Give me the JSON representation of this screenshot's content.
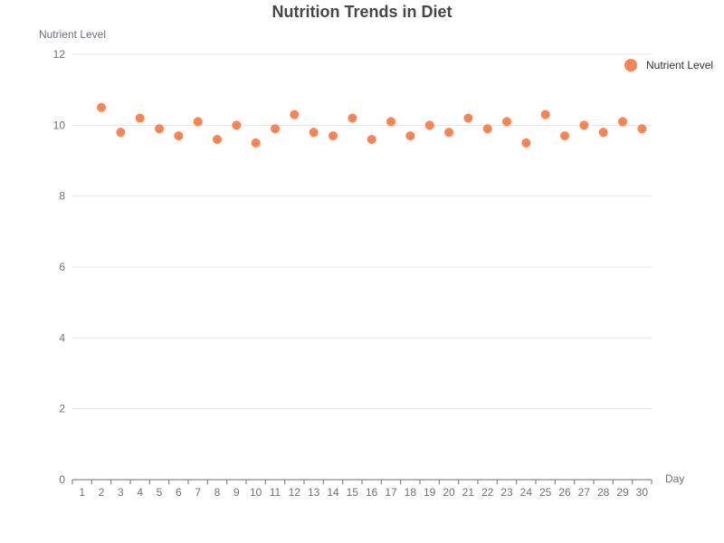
{
  "chart_data": {
    "type": "scatter",
    "title": "Nutrition Trends in Diet",
    "xlabel": "Day",
    "ylabel": "Nutrient Level",
    "x": [
      1,
      2,
      3,
      4,
      5,
      6,
      7,
      8,
      9,
      10,
      11,
      12,
      13,
      14,
      15,
      16,
      17,
      18,
      19,
      20,
      21,
      22,
      23,
      24,
      25,
      26,
      27,
      28,
      29,
      30
    ],
    "categories": [
      "1",
      "2",
      "3",
      "4",
      "5",
      "6",
      "7",
      "8",
      "9",
      "10",
      "11",
      "12",
      "13",
      "14",
      "15",
      "16",
      "17",
      "18",
      "19",
      "20",
      "21",
      "22",
      "23",
      "24",
      "25",
      "26",
      "27",
      "28",
      "29",
      "30"
    ],
    "series": [
      {
        "name": "Nutrient Level",
        "x": [
          2,
          3,
          4,
          5,
          6,
          7,
          8,
          9,
          10,
          11,
          12,
          13,
          14,
          15,
          16,
          17,
          18,
          19,
          20,
          21,
          22,
          23,
          24,
          25,
          26,
          27,
          28,
          29,
          30
        ],
        "values": [
          10.5,
          9.8,
          10.2,
          9.9,
          9.7,
          10.1,
          9.6,
          10.0,
          9.5,
          9.9,
          10.3,
          9.8,
          9.7,
          10.2,
          9.6,
          10.1,
          9.7,
          10.0,
          9.8,
          10.2,
          9.9,
          10.1,
          9.5,
          10.3,
          9.7,
          10.0,
          9.8,
          10.1,
          9.9
        ]
      }
    ],
    "ylim": [
      0,
      12
    ],
    "yticks": [
      "0",
      "2",
      "4",
      "6",
      "8",
      "10",
      "12"
    ],
    "grid": true,
    "legend_position": "top-right",
    "colors": {
      "marker": "#fc8452",
      "grid": "#e0e6f1",
      "axis": "#6e7079",
      "title": "#464646"
    }
  }
}
